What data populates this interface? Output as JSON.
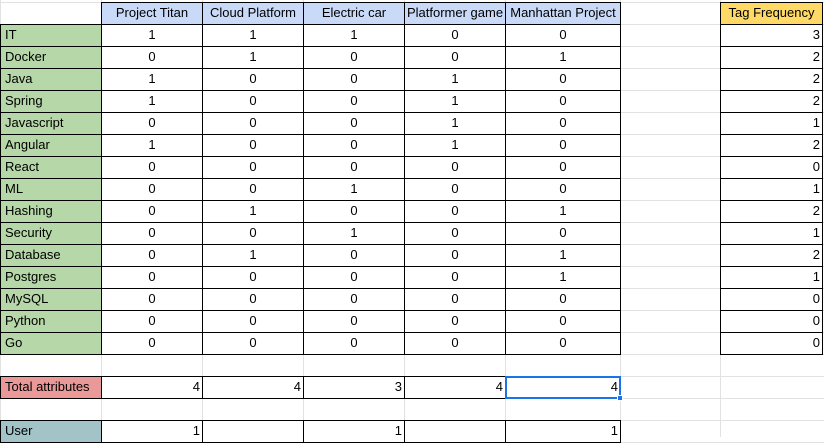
{
  "projects": [
    "Project Titan",
    "Cloud Platform",
    "Electric car",
    "Platformer game",
    "Manhattan Project"
  ],
  "freq_header": "Tag Frequency",
  "rows": [
    {
      "tag": "IT",
      "vals": [
        "1",
        "1",
        "1",
        "0",
        "0"
      ],
      "freq": "3"
    },
    {
      "tag": "Docker",
      "vals": [
        "0",
        "1",
        "0",
        "0",
        "1"
      ],
      "freq": "2"
    },
    {
      "tag": "Java",
      "vals": [
        "1",
        "0",
        "0",
        "1",
        "0"
      ],
      "freq": "2"
    },
    {
      "tag": "Spring",
      "vals": [
        "1",
        "0",
        "0",
        "1",
        "0"
      ],
      "freq": "2"
    },
    {
      "tag": "Javascript",
      "vals": [
        "0",
        "0",
        "0",
        "1",
        "0"
      ],
      "freq": "1"
    },
    {
      "tag": "Angular",
      "vals": [
        "1",
        "0",
        "0",
        "1",
        "0"
      ],
      "freq": "2"
    },
    {
      "tag": "React",
      "vals": [
        "0",
        "0",
        "0",
        "0",
        "0"
      ],
      "freq": "0"
    },
    {
      "tag": "ML",
      "vals": [
        "0",
        "0",
        "1",
        "0",
        "0"
      ],
      "freq": "1"
    },
    {
      "tag": "Hashing",
      "vals": [
        "0",
        "1",
        "0",
        "0",
        "1"
      ],
      "freq": "2"
    },
    {
      "tag": "Security",
      "vals": [
        "0",
        "0",
        "1",
        "0",
        "0"
      ],
      "freq": "1"
    },
    {
      "tag": "Database",
      "vals": [
        "0",
        "1",
        "0",
        "0",
        "1"
      ],
      "freq": "2"
    },
    {
      "tag": "Postgres",
      "vals": [
        "0",
        "0",
        "0",
        "0",
        "1"
      ],
      "freq": "1"
    },
    {
      "tag": "MySQL",
      "vals": [
        "0",
        "0",
        "0",
        "0",
        "0"
      ],
      "freq": "0"
    },
    {
      "tag": "Python",
      "vals": [
        "0",
        "0",
        "0",
        "0",
        "0"
      ],
      "freq": "0"
    },
    {
      "tag": "Go",
      "vals": [
        "0",
        "0",
        "0",
        "0",
        "0"
      ],
      "freq": "0"
    }
  ],
  "total": {
    "label": "Total attributes",
    "vals": [
      "4",
      "4",
      "3",
      "4",
      "4"
    ]
  },
  "user": {
    "label": "User",
    "vals": [
      "1",
      "",
      "1",
      "",
      "1"
    ]
  },
  "colors": {
    "header": "#c9daf8",
    "tag": "#b6d7a8",
    "freq_header": "#ffd966",
    "total": "#ea9999",
    "user": "#a2c4c9",
    "selection": "#1a73e8"
  }
}
